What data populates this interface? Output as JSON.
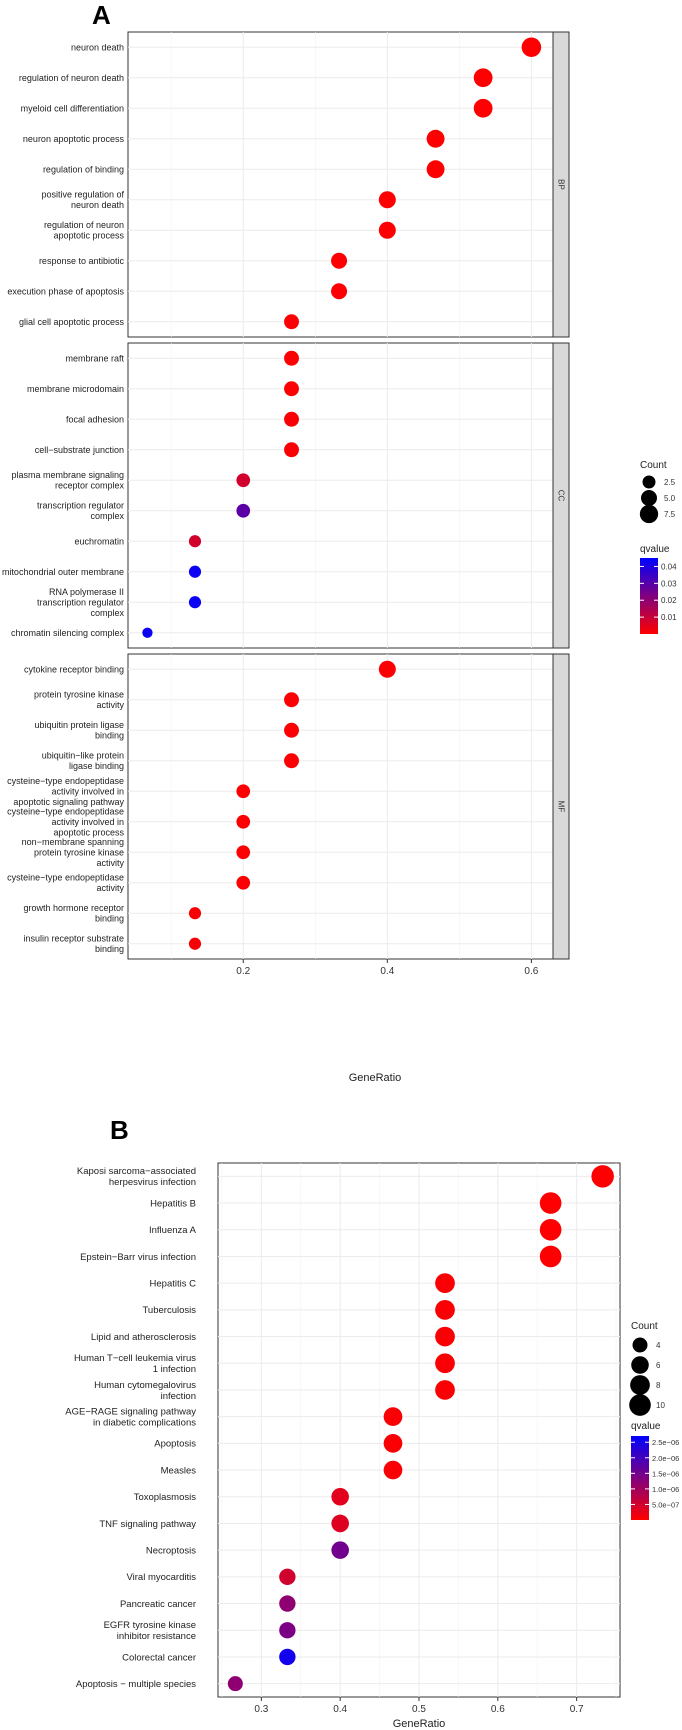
{
  "panels": [
    "A",
    "B"
  ],
  "colors": {
    "high": "#ff0000",
    "low": "#0000ff",
    "facet_strip": "#d9d9d9",
    "grid": "#ebebeb",
    "grid_minor": "#f3f3f3",
    "border": "#333333"
  },
  "chart_data": [
    {
      "type": "scatter",
      "panel_label": "A",
      "xlabel": "GeneRatio",
      "xlim": [
        0.04,
        0.63
      ],
      "xticks": [
        0.2,
        0.4,
        0.6
      ],
      "xtick_labels": [
        "0.2",
        "0.4",
        "0.6"
      ],
      "grid": true,
      "legend_position": "right",
      "size_legend": {
        "title": "Count",
        "values": [
          2.5,
          5.0,
          7.5
        ],
        "labels": [
          "2.5",
          "5.0",
          "7.5"
        ]
      },
      "color_legend": {
        "title": "qvalue",
        "range": [
          0,
          0.045
        ],
        "ticks": [
          0.01,
          0.02,
          0.03,
          0.04
        ],
        "tick_labels": [
          "0.01",
          "0.02",
          "0.03",
          "0.04"
        ]
      },
      "facets": [
        {
          "name": "BP",
          "points": [
            {
              "term_lines": [
                "neuron death"
              ],
              "x": 0.6,
              "count": 9,
              "qvalue": 0.0001
            },
            {
              "term_lines": [
                "regulation of neuron death"
              ],
              "x": 0.533,
              "count": 8,
              "qvalue": 0.0001
            },
            {
              "term_lines": [
                "myeloid cell differentiation"
              ],
              "x": 0.533,
              "count": 8,
              "qvalue": 0.0002
            },
            {
              "term_lines": [
                "neuron apoptotic process"
              ],
              "x": 0.467,
              "count": 7,
              "qvalue": 0.0001
            },
            {
              "term_lines": [
                "regulation of binding"
              ],
              "x": 0.467,
              "count": 7,
              "qvalue": 0.0002
            },
            {
              "term_lines": [
                "positive regulation of",
                "neuron death"
              ],
              "x": 0.4,
              "count": 6,
              "qvalue": 0.0001
            },
            {
              "term_lines": [
                "regulation of neuron",
                "apoptotic process"
              ],
              "x": 0.4,
              "count": 6,
              "qvalue": 0.0002
            },
            {
              "term_lines": [
                "response to antibiotic"
              ],
              "x": 0.333,
              "count": 5,
              "qvalue": 0.0005
            },
            {
              "term_lines": [
                "execution phase of apoptosis"
              ],
              "x": 0.333,
              "count": 5,
              "qvalue": 0.0005
            },
            {
              "term_lines": [
                "glial cell apoptotic process"
              ],
              "x": 0.267,
              "count": 4,
              "qvalue": 0.0005
            }
          ]
        },
        {
          "name": "CC",
          "points": [
            {
              "term_lines": [
                "membrane raft"
              ],
              "x": 0.267,
              "count": 4,
              "qvalue": 0.0005
            },
            {
              "term_lines": [
                "membrane microdomain"
              ],
              "x": 0.267,
              "count": 4,
              "qvalue": 0.0005
            },
            {
              "term_lines": [
                "focal adhesion"
              ],
              "x": 0.267,
              "count": 4,
              "qvalue": 0.001
            },
            {
              "term_lines": [
                "cell−substrate junction"
              ],
              "x": 0.267,
              "count": 4,
              "qvalue": 0.001
            },
            {
              "term_lines": [
                "plasma membrane signaling",
                "receptor complex"
              ],
              "x": 0.2,
              "count": 3,
              "qvalue": 0.008
            },
            {
              "term_lines": [
                "transcription regulator",
                "complex"
              ],
              "x": 0.2,
              "count": 3,
              "qvalue": 0.029
            },
            {
              "term_lines": [
                "euchromatin"
              ],
              "x": 0.133,
              "count": 2,
              "qvalue": 0.008
            },
            {
              "term_lines": [
                "mitochondrial outer membrane"
              ],
              "x": 0.133,
              "count": 2,
              "qvalue": 0.043
            },
            {
              "term_lines": [
                "RNA polymerase II",
                "transcription regulator",
                "complex"
              ],
              "x": 0.133,
              "count": 2,
              "qvalue": 0.043
            },
            {
              "term_lines": [
                "chromatin silencing complex"
              ],
              "x": 0.067,
              "count": 1,
              "qvalue": 0.043
            }
          ]
        },
        {
          "name": "MF",
          "points": [
            {
              "term_lines": [
                "cytokine receptor binding"
              ],
              "x": 0.4,
              "count": 6,
              "qvalue": 0.0005
            },
            {
              "term_lines": [
                "protein tyrosine kinase",
                "activity"
              ],
              "x": 0.267,
              "count": 4,
              "qvalue": 0.0005
            },
            {
              "term_lines": [
                "ubiquitin protein ligase",
                "binding"
              ],
              "x": 0.267,
              "count": 4,
              "qvalue": 0.0005
            },
            {
              "term_lines": [
                "ubiquitin−like protein",
                "ligase binding"
              ],
              "x": 0.267,
              "count": 4,
              "qvalue": 0.0005
            },
            {
              "term_lines": [
                "cysteine−type endopeptidase",
                "activity involved in",
                "apoptotic signaling pathway"
              ],
              "x": 0.2,
              "count": 3,
              "qvalue": 0.0005
            },
            {
              "term_lines": [
                "cysteine−type endopeptidase",
                "activity involved in",
                "apoptotic process"
              ],
              "x": 0.2,
              "count": 3,
              "qvalue": 0.0005
            },
            {
              "term_lines": [
                "non−membrane spanning",
                "protein tyrosine kinase",
                "activity"
              ],
              "x": 0.2,
              "count": 3,
              "qvalue": 0.0005
            },
            {
              "term_lines": [
                "cysteine−type endopeptidase",
                "activity"
              ],
              "x": 0.2,
              "count": 3,
              "qvalue": 0.0005
            },
            {
              "term_lines": [
                "growth hormone receptor",
                "binding"
              ],
              "x": 0.133,
              "count": 2,
              "qvalue": 0.001
            },
            {
              "term_lines": [
                "insulin receptor substrate",
                "binding"
              ],
              "x": 0.133,
              "count": 2,
              "qvalue": 0.001
            }
          ]
        }
      ]
    },
    {
      "type": "scatter",
      "panel_label": "B",
      "xlabel": "GeneRatio",
      "xlim": [
        0.245,
        0.755
      ],
      "xticks": [
        0.3,
        0.4,
        0.5,
        0.6,
        0.7
      ],
      "xtick_labels": [
        "0.3",
        "0.4",
        "0.5",
        "0.6",
        "0.7"
      ],
      "grid": true,
      "legend_position": "right",
      "size_legend": {
        "title": "Count",
        "values": [
          4,
          6,
          8,
          10
        ],
        "labels": [
          "4",
          "6",
          "8",
          "10"
        ]
      },
      "color_legend": {
        "title": "qvalue",
        "range": [
          0,
          2.7e-06
        ],
        "ticks": [
          5e-07,
          1e-06,
          1.5e-06,
          2e-06,
          2.5e-06
        ],
        "tick_labels": [
          "5.0e−07",
          "1.0e−06",
          "1.5e−06",
          "2.0e−06",
          "2.5e−06"
        ]
      },
      "points": [
        {
          "term_lines": [
            "Kaposi sarcoma−associated",
            "herpesvirus infection"
          ],
          "x": 0.733,
          "count": 11,
          "qvalue": 1e-08
        },
        {
          "term_lines": [
            "Hepatitis B"
          ],
          "x": 0.667,
          "count": 10,
          "qvalue": 1e-08
        },
        {
          "term_lines": [
            "Influenza A"
          ],
          "x": 0.667,
          "count": 10,
          "qvalue": 1e-08
        },
        {
          "term_lines": [
            "Epstein−Barr virus infection"
          ],
          "x": 0.667,
          "count": 10,
          "qvalue": 1e-08
        },
        {
          "term_lines": [
            "Hepatitis C"
          ],
          "x": 0.533,
          "count": 8,
          "qvalue": 5e-08
        },
        {
          "term_lines": [
            "Tuberculosis"
          ],
          "x": 0.533,
          "count": 8,
          "qvalue": 5e-08
        },
        {
          "term_lines": [
            "Lipid and atherosclerosis"
          ],
          "x": 0.533,
          "count": 8,
          "qvalue": 5e-08
        },
        {
          "term_lines": [
            "Human T−cell leukemia virus",
            "1 infection"
          ],
          "x": 0.533,
          "count": 8,
          "qvalue": 5e-08
        },
        {
          "term_lines": [
            "Human cytomegalovirus",
            "infection"
          ],
          "x": 0.533,
          "count": 8,
          "qvalue": 5e-08
        },
        {
          "term_lines": [
            "AGE−RAGE signaling pathway",
            "in diabetic complications"
          ],
          "x": 0.467,
          "count": 7,
          "qvalue": 5e-08
        },
        {
          "term_lines": [
            "Apoptosis"
          ],
          "x": 0.467,
          "count": 7,
          "qvalue": 5e-08
        },
        {
          "term_lines": [
            "Measles"
          ],
          "x": 0.467,
          "count": 7,
          "qvalue": 5e-08
        },
        {
          "term_lines": [
            "Toxoplasmosis"
          ],
          "x": 0.4,
          "count": 6,
          "qvalue": 3e-07
        },
        {
          "term_lines": [
            "TNF signaling pathway"
          ],
          "x": 0.4,
          "count": 6,
          "qvalue": 3.5e-07
        },
        {
          "term_lines": [
            "Necroptosis"
          ],
          "x": 0.4,
          "count": 6,
          "qvalue": 1.5e-06
        },
        {
          "term_lines": [
            "Viral myocarditis"
          ],
          "x": 0.333,
          "count": 5,
          "qvalue": 5e-07
        },
        {
          "term_lines": [
            "Pancreatic cancer"
          ],
          "x": 0.333,
          "count": 5,
          "qvalue": 1.2e-06
        },
        {
          "term_lines": [
            "EGFR tyrosine kinase",
            "inhibitor resistance"
          ],
          "x": 0.333,
          "count": 5,
          "qvalue": 1.4e-06
        },
        {
          "term_lines": [
            "Colorectal cancer"
          ],
          "x": 0.333,
          "count": 5,
          "qvalue": 2.5e-06
        },
        {
          "term_lines": [
            "Apoptosis − multiple species"
          ],
          "x": 0.267,
          "count": 4,
          "qvalue": 1.2e-06
        }
      ]
    }
  ]
}
